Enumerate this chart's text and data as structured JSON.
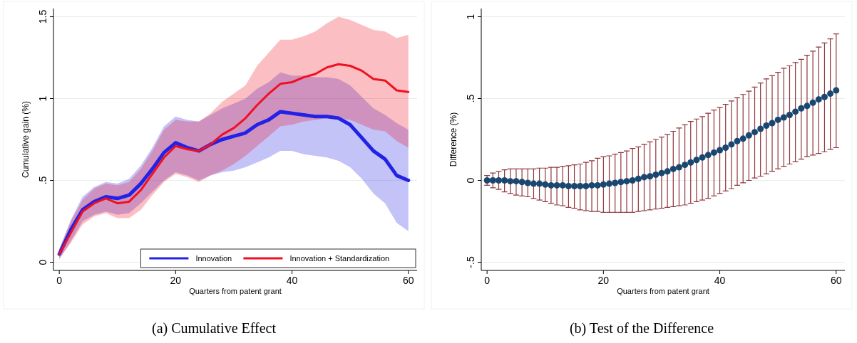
{
  "chart_data": [
    {
      "type": "line",
      "title": "(a) Cumulative Effect",
      "xlabel": "Quarters from patent grant",
      "ylabel": "Cumulative gain (%)",
      "x": [
        0,
        2,
        4,
        6,
        8,
        10,
        12,
        14,
        16,
        18,
        20,
        22,
        24,
        26,
        28,
        30,
        32,
        34,
        36,
        38,
        40,
        42,
        44,
        46,
        48,
        50,
        52,
        54,
        56,
        58,
        60
      ],
      "xlim": [
        -1,
        61.5
      ],
      "ylim": [
        -0.05,
        1.55
      ],
      "xticks": [
        0,
        20,
        40,
        60
      ],
      "yticks": [
        {
          "value": 0,
          "label": "0"
        },
        {
          "value": 0.5,
          "label": ".5"
        },
        {
          "value": 1,
          "label": "1"
        },
        {
          "value": 1.5,
          "label": "1.5"
        }
      ],
      "grid": "y",
      "legend": "bottom right",
      "line_style": "solid",
      "series": [
        {
          "name": "Innovation",
          "color": "#2222e6",
          "values": [
            0.05,
            0.2,
            0.32,
            0.37,
            0.4,
            0.39,
            0.41,
            0.48,
            0.57,
            0.67,
            0.73,
            0.7,
            0.68,
            0.72,
            0.75,
            0.77,
            0.79,
            0.84,
            0.87,
            0.92,
            0.91,
            0.9,
            0.89,
            0.89,
            0.88,
            0.84,
            0.76,
            0.68,
            0.63,
            0.53,
            0.5
          ],
          "lower": [
            0.02,
            0.13,
            0.25,
            0.29,
            0.31,
            0.29,
            0.3,
            0.36,
            0.43,
            0.5,
            0.55,
            0.53,
            0.5,
            0.53,
            0.55,
            0.56,
            0.58,
            0.61,
            0.64,
            0.68,
            0.68,
            0.66,
            0.65,
            0.64,
            0.62,
            0.58,
            0.51,
            0.42,
            0.36,
            0.24,
            0.19
          ],
          "upper": [
            0.08,
            0.26,
            0.4,
            0.46,
            0.49,
            0.48,
            0.51,
            0.59,
            0.7,
            0.83,
            0.89,
            0.87,
            0.86,
            0.9,
            0.94,
            0.97,
            1.0,
            1.06,
            1.1,
            1.16,
            1.14,
            1.14,
            1.13,
            1.13,
            1.12,
            1.08,
            1.01,
            0.94,
            0.9,
            0.85,
            0.81
          ]
        },
        {
          "name": "Innovation + Standardization",
          "color": "#f01020",
          "values": [
            0.05,
            0.18,
            0.31,
            0.36,
            0.39,
            0.36,
            0.37,
            0.44,
            0.54,
            0.64,
            0.71,
            0.69,
            0.68,
            0.72,
            0.78,
            0.82,
            0.88,
            0.96,
            1.03,
            1.09,
            1.1,
            1.13,
            1.15,
            1.19,
            1.21,
            1.2,
            1.17,
            1.12,
            1.11,
            1.05,
            1.04
          ],
          "lower": [
            0.02,
            0.12,
            0.23,
            0.28,
            0.3,
            0.27,
            0.27,
            0.32,
            0.41,
            0.49,
            0.54,
            0.52,
            0.49,
            0.53,
            0.56,
            0.6,
            0.65,
            0.71,
            0.77,
            0.83,
            0.84,
            0.86,
            0.87,
            0.88,
            0.88,
            0.87,
            0.84,
            0.81,
            0.8,
            0.74,
            0.7
          ],
          "upper": [
            0.08,
            0.25,
            0.38,
            0.45,
            0.48,
            0.47,
            0.49,
            0.57,
            0.68,
            0.81,
            0.87,
            0.86,
            0.86,
            0.91,
            0.98,
            1.03,
            1.08,
            1.2,
            1.28,
            1.36,
            1.36,
            1.38,
            1.41,
            1.46,
            1.5,
            1.48,
            1.45,
            1.42,
            1.41,
            1.37,
            1.39
          ]
        }
      ]
    },
    {
      "type": "scatter",
      "title": "(b) Test of the Difference",
      "xlabel": "Quarters from patent grant",
      "ylabel": "Difference (%)",
      "xlim": [
        -1,
        61.5
      ],
      "ylim": [
        -0.55,
        1.05
      ],
      "xticks": [
        0,
        20,
        40,
        60
      ],
      "yticks": [
        {
          "value": -0.5,
          "label": "-.5"
        },
        {
          "value": 0,
          "label": "0"
        },
        {
          "value": 0.5,
          "label": ".5"
        },
        {
          "value": 1,
          "label": "1"
        }
      ],
      "grid": "y",
      "marker": "circle",
      "legend": false,
      "x": [
        0,
        1,
        2,
        3,
        4,
        5,
        6,
        7,
        8,
        9,
        10,
        11,
        12,
        13,
        14,
        15,
        16,
        17,
        18,
        19,
        20,
        21,
        22,
        23,
        24,
        25,
        26,
        27,
        28,
        29,
        30,
        31,
        32,
        33,
        34,
        35,
        36,
        37,
        38,
        39,
        40,
        41,
        42,
        43,
        44,
        45,
        46,
        47,
        48,
        49,
        50,
        51,
        52,
        53,
        54,
        55,
        56,
        57,
        58,
        59,
        60
      ],
      "series": [
        {
          "color": "#1a476f",
          "values": [
            0,
            0,
            0,
            0,
            -0.005,
            -0.005,
            -0.01,
            -0.015,
            -0.02,
            -0.02,
            -0.025,
            -0.03,
            -0.03,
            -0.03,
            -0.035,
            -0.035,
            -0.035,
            -0.035,
            -0.03,
            -0.03,
            -0.025,
            -0.02,
            -0.015,
            -0.01,
            -0.005,
            0,
            0.01,
            0.02,
            0.025,
            0.035,
            0.045,
            0.055,
            0.07,
            0.08,
            0.095,
            0.11,
            0.125,
            0.14,
            0.155,
            0.17,
            0.185,
            0.2,
            0.22,
            0.24,
            0.255,
            0.275,
            0.295,
            0.315,
            0.335,
            0.35,
            0.37,
            0.385,
            0.4,
            0.42,
            0.44,
            0.455,
            0.475,
            0.495,
            0.51,
            0.53,
            0.55
          ],
          "errors": [
            [
              -0.03,
              0.03
            ],
            [
              -0.045,
              0.045
            ],
            [
              -0.055,
              0.055
            ],
            [
              -0.07,
              0.065
            ],
            [
              -0.08,
              0.07
            ],
            [
              -0.09,
              0.07
            ],
            [
              -0.095,
              0.07
            ],
            [
              -0.1,
              0.07
            ],
            [
              -0.11,
              0.07
            ],
            [
              -0.12,
              0.075
            ],
            [
              -0.13,
              0.075
            ],
            [
              -0.14,
              0.08
            ],
            [
              -0.15,
              0.08
            ],
            [
              -0.155,
              0.085
            ],
            [
              -0.165,
              0.09
            ],
            [
              -0.17,
              0.095
            ],
            [
              -0.18,
              0.1
            ],
            [
              -0.185,
              0.11
            ],
            [
              -0.19,
              0.12
            ],
            [
              -0.19,
              0.135
            ],
            [
              -0.195,
              0.145
            ],
            [
              -0.195,
              0.15
            ],
            [
              -0.195,
              0.16
            ],
            [
              -0.195,
              0.17
            ],
            [
              -0.195,
              0.18
            ],
            [
              -0.195,
              0.195
            ],
            [
              -0.19,
              0.205
            ],
            [
              -0.185,
              0.22
            ],
            [
              -0.18,
              0.235
            ],
            [
              -0.175,
              0.25
            ],
            [
              -0.17,
              0.265
            ],
            [
              -0.165,
              0.28
            ],
            [
              -0.16,
              0.3
            ],
            [
              -0.155,
              0.32
            ],
            [
              -0.15,
              0.34
            ],
            [
              -0.14,
              0.36
            ],
            [
              -0.13,
              0.375
            ],
            [
              -0.12,
              0.39
            ],
            [
              -0.11,
              0.41
            ],
            [
              -0.095,
              0.43
            ],
            [
              -0.08,
              0.445
            ],
            [
              -0.065,
              0.465
            ],
            [
              -0.05,
              0.485
            ],
            [
              -0.03,
              0.505
            ],
            [
              -0.015,
              0.525
            ],
            [
              0,
              0.545
            ],
            [
              0.015,
              0.57
            ],
            [
              0.025,
              0.595
            ],
            [
              0.04,
              0.62
            ],
            [
              0.055,
              0.64
            ],
            [
              0.07,
              0.66
            ],
            [
              0.085,
              0.685
            ],
            [
              0.1,
              0.7
            ],
            [
              0.115,
              0.72
            ],
            [
              0.13,
              0.74
            ],
            [
              0.145,
              0.765
            ],
            [
              0.155,
              0.79
            ],
            [
              0.165,
              0.815
            ],
            [
              0.175,
              0.84
            ],
            [
              0.19,
              0.865
            ],
            [
              0.2,
              0.895
            ]
          ]
        }
      ]
    }
  ]
}
